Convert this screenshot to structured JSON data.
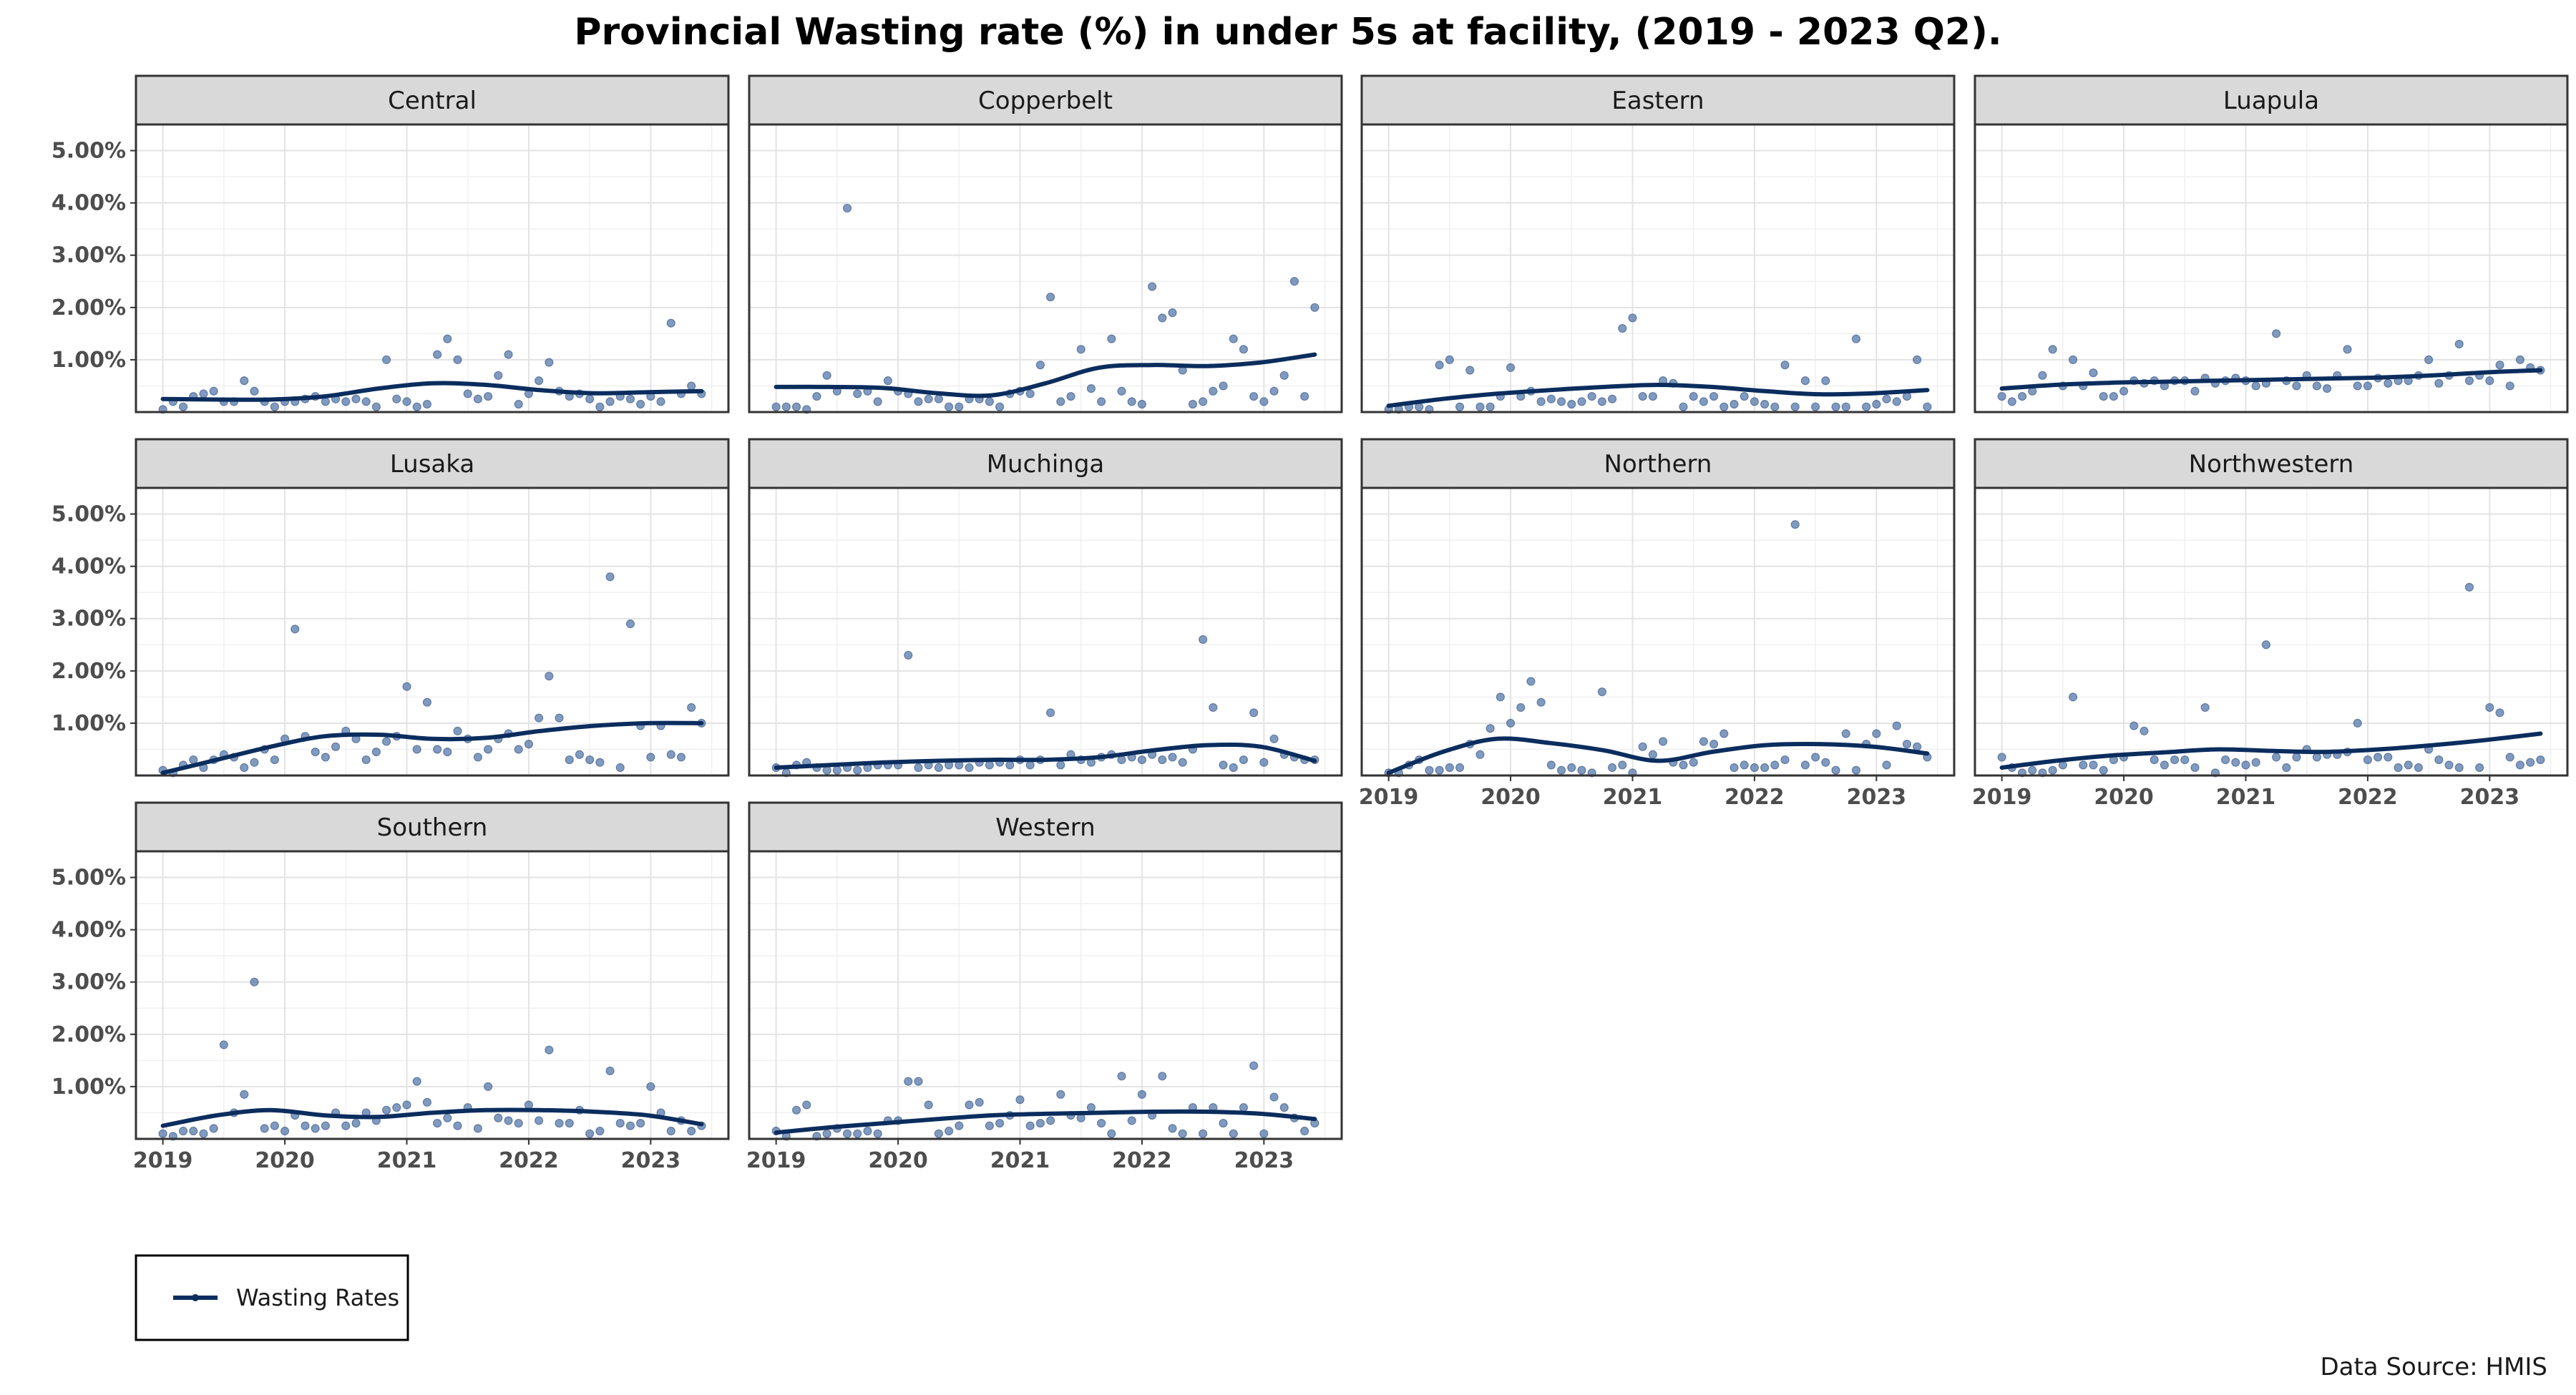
{
  "chart_data": {
    "type": "scatter",
    "title": "Provincial Wasting rate (%) in under 5s at facility, (2019 - 2023 Q2).",
    "caption": "Data Source: HMIS",
    "legend": {
      "entries": [
        "Wasting Rates"
      ],
      "position": "bottom-left"
    },
    "x_range": [
      "2019-01",
      "2023-06"
    ],
    "x_ticks": [
      "2019",
      "2020",
      "2021",
      "2022",
      "2023"
    ],
    "y_range": [
      0,
      5.5
    ],
    "y_ticks": [
      "1.00%",
      "2.00%",
      "3.00%",
      "4.00%",
      "5.00%"
    ],
    "grid": true,
    "colors": {
      "line": "#0b2d5e",
      "points": "#4a6fa5",
      "strip": "#d9d9d9"
    },
    "panels": [
      {
        "name": "Central",
        "values": [
          0.05,
          0.2,
          0.1,
          0.3,
          0.35,
          0.4,
          0.2,
          0.2,
          0.6,
          0.4,
          0.2,
          0.1,
          0.2,
          0.2,
          0.25,
          0.3,
          0.2,
          0.25,
          0.2,
          0.25,
          0.2,
          0.1,
          1.0,
          0.25,
          0.2,
          0.1,
          0.15,
          1.1,
          1.4,
          1.0,
          0.35,
          0.25,
          0.3,
          0.7,
          1.1,
          0.15,
          0.35,
          0.6,
          0.95,
          0.4,
          0.3,
          0.35,
          0.25,
          0.1,
          0.2,
          0.3,
          0.25,
          0.15,
          0.3,
          0.2,
          1.7,
          0.35,
          0.5,
          0.35
        ],
        "trend": [
          0.25,
          0.24,
          0.24,
          0.3,
          0.45,
          0.55,
          0.52,
          0.42,
          0.36,
          0.38,
          0.4
        ]
      },
      {
        "name": "Copperbelt",
        "values": [
          0.1,
          0.1,
          0.1,
          0.05,
          0.3,
          0.7,
          0.4,
          3.9,
          0.35,
          0.4,
          0.2,
          0.6,
          0.4,
          0.35,
          0.2,
          0.25,
          0.25,
          0.1,
          0.1,
          0.25,
          0.25,
          0.2,
          0.1,
          0.35,
          0.4,
          0.35,
          0.9,
          2.2,
          0.2,
          0.3,
          1.2,
          0.45,
          0.2,
          1.4,
          0.4,
          0.2,
          0.15,
          2.4,
          1.8,
          1.9,
          0.8,
          0.15,
          0.2,
          0.4,
          0.5,
          1.4,
          1.2,
          0.3,
          0.2,
          0.4,
          0.7,
          2.5,
          0.3,
          2.0
        ],
        "trend": [
          0.48,
          0.48,
          0.46,
          0.36,
          0.32,
          0.55,
          0.85,
          0.9,
          0.88,
          0.95,
          1.1
        ]
      },
      {
        "name": "Eastern",
        "values": [
          0.05,
          0.05,
          0.1,
          0.1,
          0.05,
          0.9,
          1.0,
          0.1,
          0.8,
          0.1,
          0.1,
          0.3,
          0.85,
          0.3,
          0.4,
          0.2,
          0.25,
          0.2,
          0.15,
          0.2,
          0.3,
          0.2,
          0.25,
          1.6,
          1.8,
          0.3,
          0.3,
          0.6,
          0.55,
          0.1,
          0.3,
          0.2,
          0.3,
          0.1,
          0.15,
          0.3,
          0.2,
          0.15,
          0.1,
          0.9,
          0.1,
          0.6,
          0.1,
          0.6,
          0.1,
          0.1,
          1.4,
          0.1,
          0.15,
          0.25,
          0.2,
          0.3,
          1.0,
          0.1
        ],
        "trend": [
          0.12,
          0.25,
          0.35,
          0.42,
          0.48,
          0.52,
          0.48,
          0.4,
          0.34,
          0.36,
          0.42
        ]
      },
      {
        "name": "Luapula",
        "values": [
          0.3,
          0.2,
          0.3,
          0.4,
          0.7,
          1.2,
          0.5,
          1.0,
          0.5,
          0.75,
          0.3,
          0.3,
          0.4,
          0.6,
          0.55,
          0.6,
          0.5,
          0.6,
          0.6,
          0.4,
          0.65,
          0.55,
          0.6,
          0.65,
          0.6,
          0.5,
          0.55,
          1.5,
          0.6,
          0.5,
          0.7,
          0.5,
          0.45,
          0.7,
          1.2,
          0.5,
          0.5,
          0.65,
          0.55,
          0.6,
          0.6,
          0.7,
          1.0,
          0.55,
          0.7,
          1.3,
          0.6,
          0.7,
          0.6,
          0.9,
          0.5,
          1.0,
          0.85,
          0.8
        ],
        "trend": [
          0.45,
          0.52,
          0.56,
          0.58,
          0.6,
          0.62,
          0.64,
          0.66,
          0.7,
          0.76,
          0.8
        ]
      },
      {
        "name": "Lusaka",
        "values": [
          0.1,
          0.05,
          0.2,
          0.3,
          0.15,
          0.3,
          0.4,
          0.35,
          0.15,
          0.25,
          0.5,
          0.3,
          0.7,
          2.8,
          0.75,
          0.45,
          0.35,
          0.55,
          0.85,
          0.7,
          0.3,
          0.45,
          0.65,
          0.75,
          1.7,
          0.5,
          1.4,
          0.5,
          0.45,
          0.85,
          0.7,
          0.35,
          0.5,
          0.7,
          0.8,
          0.5,
          0.6,
          1.1,
          1.9,
          1.1,
          0.3,
          0.4,
          0.3,
          0.25,
          3.8,
          0.15,
          2.9,
          0.95,
          0.35,
          0.95,
          0.4,
          0.35,
          1.3,
          1.0
        ],
        "trend": [
          0.05,
          0.3,
          0.55,
          0.75,
          0.78,
          0.7,
          0.72,
          0.85,
          0.95,
          1.0,
          1.0
        ]
      },
      {
        "name": "Muchinga",
        "values": [
          0.15,
          0.05,
          0.2,
          0.25,
          0.15,
          0.1,
          0.1,
          0.15,
          0.1,
          0.15,
          0.2,
          0.2,
          0.2,
          2.3,
          0.15,
          0.2,
          0.15,
          0.2,
          0.2,
          0.15,
          0.25,
          0.2,
          0.25,
          0.2,
          0.3,
          0.2,
          0.3,
          1.2,
          0.2,
          0.4,
          0.3,
          0.25,
          0.35,
          0.4,
          0.3,
          0.35,
          0.3,
          0.4,
          0.3,
          0.35,
          0.25,
          0.5,
          2.6,
          1.3,
          0.2,
          0.15,
          0.3,
          1.2,
          0.25,
          0.7,
          0.4,
          0.35,
          0.3,
          0.3
        ],
        "trend": [
          0.15,
          0.2,
          0.25,
          0.28,
          0.3,
          0.3,
          0.35,
          0.48,
          0.58,
          0.55,
          0.28
        ]
      },
      {
        "name": "Northern",
        "values": [
          0.05,
          0.05,
          0.2,
          0.3,
          0.1,
          0.1,
          0.15,
          0.15,
          0.6,
          0.4,
          0.9,
          1.5,
          1.0,
          1.3,
          1.8,
          1.4,
          0.2,
          0.1,
          0.15,
          0.1,
          0.05,
          1.6,
          0.15,
          0.2,
          0.05,
          0.55,
          0.4,
          0.65,
          0.25,
          0.2,
          0.25,
          0.65,
          0.6,
          0.8,
          0.15,
          0.2,
          0.15,
          0.15,
          0.2,
          0.3,
          4.8,
          0.2,
          0.35,
          0.25,
          0.1,
          0.8,
          0.1,
          0.6,
          0.8,
          0.2,
          0.95,
          0.6,
          0.55,
          0.35
        ],
        "trend": [
          0.05,
          0.45,
          0.7,
          0.62,
          0.48,
          0.28,
          0.45,
          0.58,
          0.6,
          0.55,
          0.42
        ]
      },
      {
        "name": "Northwestern",
        "values": [
          0.35,
          0.15,
          0.05,
          0.1,
          0.05,
          0.1,
          0.2,
          1.5,
          0.2,
          0.2,
          0.1,
          0.3,
          0.35,
          0.95,
          0.85,
          0.3,
          0.2,
          0.3,
          0.3,
          0.15,
          1.3,
          0.05,
          0.3,
          0.25,
          0.2,
          0.25,
          2.5,
          0.35,
          0.15,
          0.35,
          0.5,
          0.35,
          0.4,
          0.4,
          0.45,
          1.0,
          0.3,
          0.35,
          0.35,
          0.15,
          0.2,
          0.15,
          0.5,
          0.3,
          0.2,
          0.15,
          3.6,
          0.15,
          1.3,
          1.2,
          0.35,
          0.2,
          0.25,
          0.3
        ],
        "trend": [
          0.15,
          0.28,
          0.38,
          0.44,
          0.5,
          0.47,
          0.45,
          0.5,
          0.58,
          0.68,
          0.8
        ]
      },
      {
        "name": "Southern",
        "values": [
          0.1,
          0.05,
          0.15,
          0.15,
          0.1,
          0.2,
          1.8,
          0.5,
          0.85,
          3.0,
          0.2,
          0.25,
          0.15,
          0.45,
          0.25,
          0.2,
          0.25,
          0.5,
          0.25,
          0.3,
          0.5,
          0.35,
          0.55,
          0.6,
          0.65,
          1.1,
          0.7,
          0.3,
          0.4,
          0.25,
          0.6,
          0.2,
          1.0,
          0.4,
          0.35,
          0.3,
          0.65,
          0.35,
          1.7,
          0.3,
          0.3,
          0.55,
          0.1,
          0.15,
          1.3,
          0.3,
          0.25,
          0.3,
          1.0,
          0.5,
          0.15,
          0.35,
          0.15,
          0.25
        ],
        "trend": [
          0.25,
          0.45,
          0.55,
          0.45,
          0.42,
          0.5,
          0.55,
          0.55,
          0.52,
          0.45,
          0.28
        ]
      },
      {
        "name": "Western",
        "values": [
          0.15,
          0.05,
          0.55,
          0.65,
          0.05,
          0.1,
          0.2,
          0.1,
          0.1,
          0.15,
          0.1,
          0.35,
          0.35,
          1.1,
          1.1,
          0.65,
          0.1,
          0.15,
          0.25,
          0.65,
          0.7,
          0.25,
          0.3,
          0.45,
          0.75,
          0.25,
          0.3,
          0.35,
          0.85,
          0.45,
          0.4,
          0.6,
          0.3,
          0.1,
          1.2,
          0.35,
          0.85,
          0.45,
          1.2,
          0.2,
          0.1,
          0.6,
          0.1,
          0.6,
          0.3,
          0.1,
          0.6,
          1.4,
          0.1,
          0.8,
          0.6,
          0.4,
          0.15,
          0.3
        ],
        "trend": [
          0.12,
          0.22,
          0.3,
          0.38,
          0.45,
          0.48,
          0.5,
          0.52,
          0.52,
          0.48,
          0.38
        ]
      }
    ]
  }
}
